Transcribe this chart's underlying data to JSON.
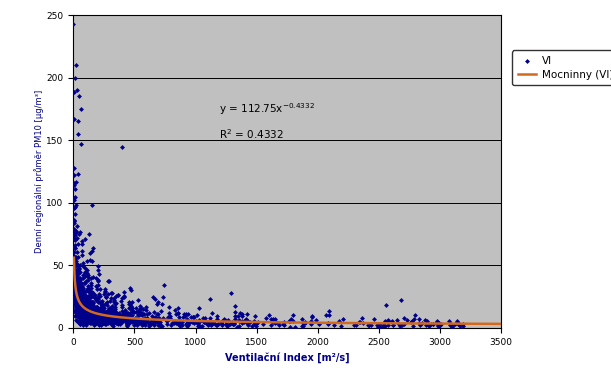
{
  "xlabel": "Ventilační Index [m²/s]",
  "ylabel": "Denní regionální průměr PM10 [μg/m³]",
  "xlim": [
    0,
    3500
  ],
  "ylim": [
    0,
    250
  ],
  "xticks": [
    0,
    500,
    1000,
    1500,
    2000,
    2500,
    3000,
    3500
  ],
  "yticks": [
    0,
    50,
    100,
    150,
    200,
    250
  ],
  "coeff": 112.75,
  "power": -0.4332,
  "scatter_color": "#00008B",
  "line_color": "#D2691E",
  "bg_color": "#C0C0C0",
  "legend_scatter": "VI",
  "legend_line": "Mocninny (VI)",
  "seed": 42,
  "n_points": 1200,
  "marker": "D",
  "markersize": 2.5
}
